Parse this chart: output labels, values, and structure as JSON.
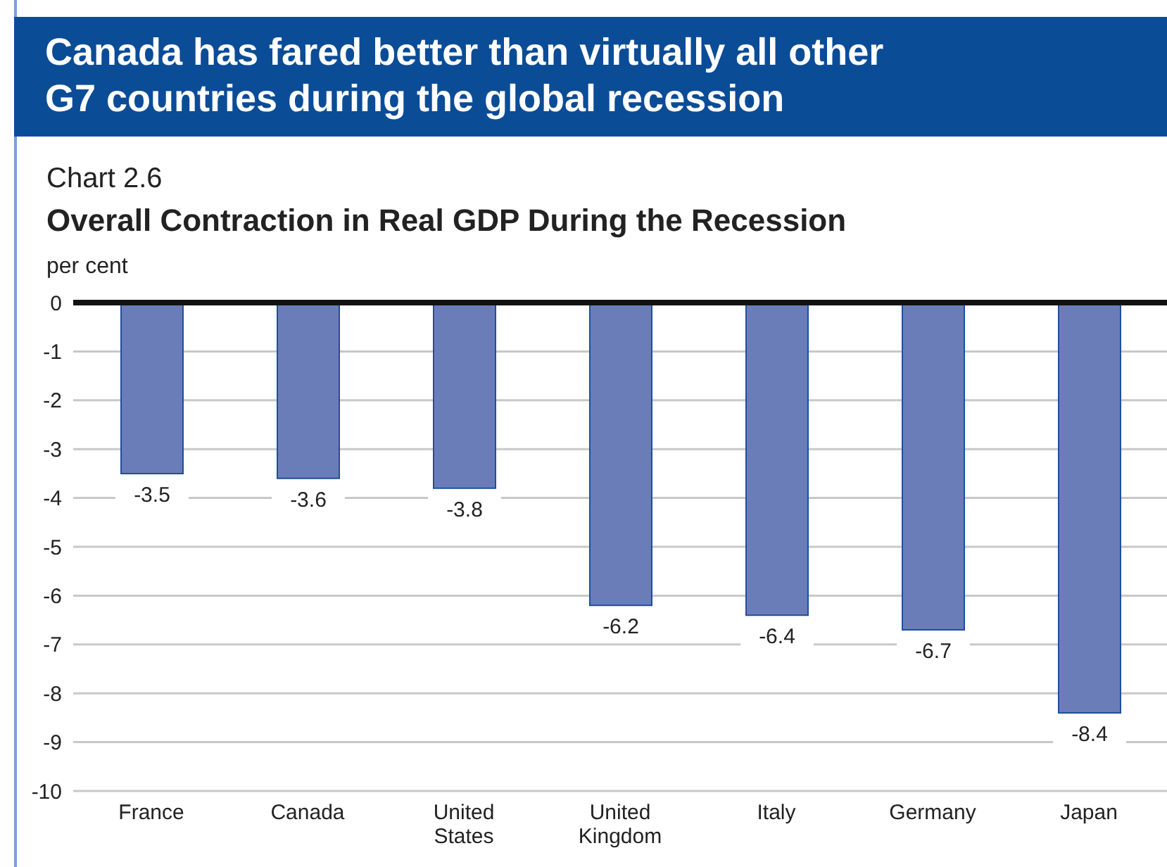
{
  "chart_data": {
    "type": "bar",
    "title": "Canada has fared better than virtually all other G7 countries during the global recession",
    "subtitle": "Overall Contraction in Real GDP During the Recession",
    "annotations": [
      "Chart 2.6"
    ],
    "ylabel": "per cent",
    "categories": [
      "France",
      "Canada",
      "United States",
      "United Kingdom",
      "Italy",
      "Germany",
      "Japan"
    ],
    "values": [
      -3.5,
      -3.6,
      -3.8,
      -6.2,
      -6.4,
      -6.7,
      -8.4
    ],
    "color": "#6b7db8",
    "ylim": [
      -10,
      0
    ],
    "yticks": [
      0,
      -1,
      -2,
      -3,
      -4,
      -5,
      -6,
      -7,
      -8,
      -9,
      -10
    ],
    "grid": "y",
    "data_labels": true,
    "legend": false
  }
}
